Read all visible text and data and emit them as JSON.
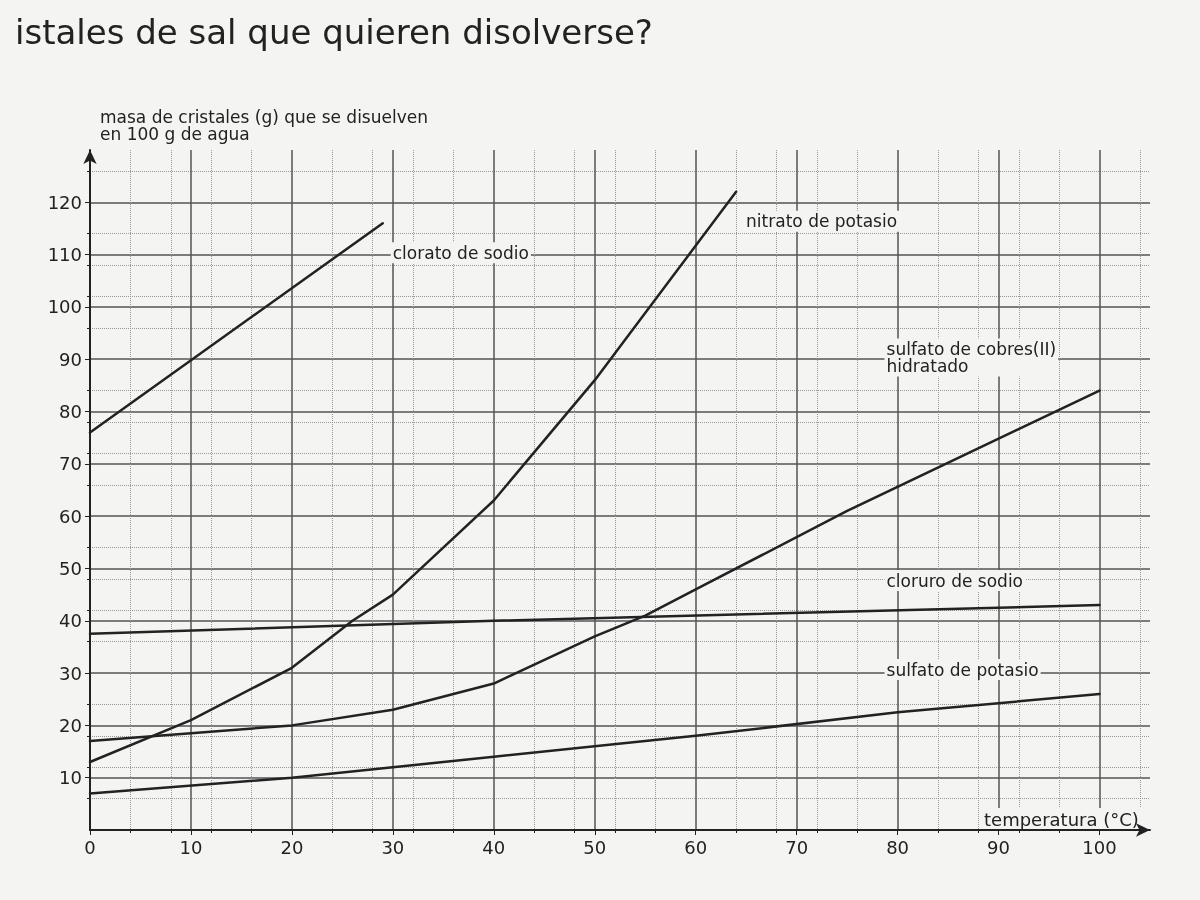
{
  "chart_data": {
    "type": "line",
    "title": "istales de sal que quieren disolverse?",
    "ylabel": "masa de cristales (g) que se disuelven\nen 100 g de agua",
    "xlabel": "temperatura (°C)",
    "xlim": [
      0,
      105
    ],
    "ylim": [
      0,
      130
    ],
    "xticks": [
      0,
      10,
      20,
      30,
      40,
      50,
      60,
      70,
      80,
      90,
      100
    ],
    "yticks": [
      10,
      20,
      30,
      40,
      50,
      60,
      70,
      80,
      90,
      100,
      110,
      120
    ],
    "grid": true,
    "legend": false,
    "marker": "none",
    "line_style": "solid",
    "series": [
      {
        "name": "clorato de sodio",
        "color": "#222222",
        "x": [
          0,
          29
        ],
        "values": [
          76,
          116
        ]
      },
      {
        "name": "nitrato de potasio",
        "color": "#222222",
        "x": [
          0,
          10,
          20,
          26,
          30,
          40,
          50,
          57,
          64
        ],
        "values": [
          13,
          21,
          31,
          40,
          45,
          63,
          86,
          104,
          122
        ]
      },
      {
        "name": "sulfato de cobres(II)\nhidratado",
        "color": "#222222",
        "x": [
          0,
          10,
          20,
          30,
          40,
          50,
          55,
          60,
          75,
          100
        ],
        "values": [
          17,
          18.5,
          20,
          23,
          28,
          37,
          41,
          46,
          61,
          84
        ]
      },
      {
        "name": "cloruro de sodio",
        "color": "#222222",
        "x": [
          0,
          40,
          100
        ],
        "values": [
          37.5,
          40,
          43
        ]
      },
      {
        "name": "sulfato de potasio",
        "color": "#222222",
        "x": [
          0,
          20,
          40,
          60,
          80,
          100
        ],
        "values": [
          7,
          10,
          14,
          18,
          22.5,
          26
        ]
      }
    ]
  }
}
